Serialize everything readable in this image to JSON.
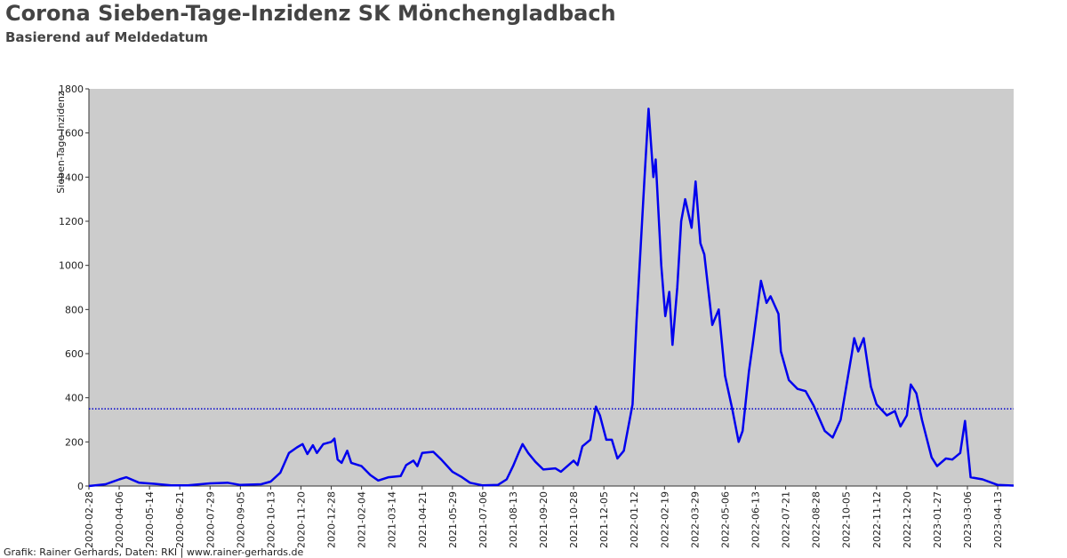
{
  "chart_data": {
    "type": "line",
    "title": "Corona Sieben-Tage-Inzidenz SK Mönchengladbach",
    "subtitle": "Basierend auf Meldedatum",
    "y_label": "Sieben-Tage-Inzidenz",
    "footer": "Grafik: Rainer Gerhards, Daten: RKI | www.rainer-gerhards.de",
    "color": "#0000ee",
    "reference_line": 350,
    "reference_color": "#0000cc",
    "ylim": [
      0,
      1800
    ],
    "yticks": [
      0,
      200,
      400,
      600,
      800,
      1000,
      1200,
      1400,
      1600,
      1800
    ],
    "xlim": [
      "2020-02-28",
      "2023-05-03"
    ],
    "xticks": [
      "2020-02-28",
      "2020-04-06",
      "2020-05-14",
      "2020-06-21",
      "2020-07-29",
      "2020-09-05",
      "2020-10-13",
      "2020-11-20",
      "2020-12-28",
      "2021-02-04",
      "2021-03-14",
      "2021-04-21",
      "2021-05-29",
      "2021-07-06",
      "2021-08-13",
      "2021-09-20",
      "2021-10-28",
      "2021-12-05",
      "2022-01-12",
      "2022-02-19",
      "2022-03-29",
      "2022-05-06",
      "2022-06-13",
      "2022-07-21",
      "2022-08-28",
      "2022-10-05",
      "2022-11-12",
      "2022-12-20",
      "2023-01-27",
      "2023-03-06",
      "2023-04-13"
    ],
    "x": [
      "2020-02-28",
      "2020-03-20",
      "2020-04-06",
      "2020-04-15",
      "2020-05-01",
      "2020-05-20",
      "2020-06-10",
      "2020-07-01",
      "2020-07-29",
      "2020-08-20",
      "2020-09-05",
      "2020-10-01",
      "2020-10-13",
      "2020-10-25",
      "2020-11-05",
      "2020-11-15",
      "2020-11-22",
      "2020-11-28",
      "2020-12-05",
      "2020-12-10",
      "2020-12-18",
      "2020-12-28",
      "2021-01-01",
      "2021-01-05",
      "2021-01-10",
      "2021-01-17",
      "2021-01-22",
      "2021-02-04",
      "2021-02-15",
      "2021-02-25",
      "2021-03-10",
      "2021-03-25",
      "2021-04-01",
      "2021-04-10",
      "2021-04-15",
      "2021-04-21",
      "2021-05-05",
      "2021-05-15",
      "2021-05-29",
      "2021-06-10",
      "2021-06-20",
      "2021-07-06",
      "2021-07-25",
      "2021-08-05",
      "2021-08-13",
      "2021-08-20",
      "2021-08-25",
      "2021-09-01",
      "2021-09-10",
      "2021-09-20",
      "2021-10-05",
      "2021-10-12",
      "2021-10-28",
      "2021-11-02",
      "2021-11-08",
      "2021-11-18",
      "2021-11-25",
      "2021-11-30",
      "2021-12-08",
      "2021-12-15",
      "2021-12-22",
      "2021-12-30",
      "2022-01-10",
      "2022-01-15",
      "2022-01-25",
      "2022-01-30",
      "2022-02-05",
      "2022-02-08",
      "2022-02-15",
      "2022-02-20",
      "2022-02-25",
      "2022-03-01",
      "2022-03-07",
      "2022-03-12",
      "2022-03-17",
      "2022-03-25",
      "2022-03-30",
      "2022-04-05",
      "2022-04-10",
      "2022-04-20",
      "2022-04-28",
      "2022-05-06",
      "2022-05-15",
      "2022-05-23",
      "2022-05-28",
      "2022-06-05",
      "2022-06-10",
      "2022-06-20",
      "2022-06-27",
      "2022-07-02",
      "2022-07-12",
      "2022-07-15",
      "2022-07-25",
      "2022-08-05",
      "2022-08-15",
      "2022-08-25",
      "2022-09-08",
      "2022-09-18",
      "2022-09-28",
      "2022-10-05",
      "2022-10-12",
      "2022-10-15",
      "2022-10-20",
      "2022-10-27",
      "2022-11-05",
      "2022-11-12",
      "2022-11-25",
      "2022-12-05",
      "2022-12-12",
      "2022-12-20",
      "2022-12-25",
      "2023-01-01",
      "2023-01-08",
      "2023-01-20",
      "2023-01-27",
      "2023-02-07",
      "2023-02-15",
      "2023-02-25",
      "2023-03-03",
      "2023-03-10",
      "2023-03-25",
      "2023-04-13",
      "2023-05-03"
    ],
    "values": [
      0,
      8,
      30,
      40,
      15,
      10,
      3,
      3,
      12,
      15,
      5,
      8,
      20,
      60,
      150,
      175,
      190,
      145,
      185,
      150,
      190,
      200,
      215,
      120,
      105,
      160,
      105,
      90,
      50,
      25,
      40,
      45,
      95,
      115,
      90,
      150,
      155,
      120,
      65,
      40,
      15,
      3,
      5,
      30,
      90,
      150,
      190,
      150,
      110,
      75,
      80,
      65,
      115,
      95,
      180,
      210,
      360,
      320,
      210,
      210,
      125,
      160,
      370,
      750,
      1400,
      1710,
      1400,
      1480,
      1000,
      770,
      880,
      640,
      900,
      1200,
      1300,
      1170,
      1380,
      1100,
      1050,
      730,
      800,
      500,
      350,
      200,
      250,
      520,
      650,
      930,
      830,
      860,
      780,
      610,
      480,
      440,
      430,
      365,
      250,
      220,
      300,
      450,
      600,
      670,
      610,
      670,
      450,
      370,
      320,
      340,
      270,
      320,
      460,
      420,
      300,
      130,
      90,
      125,
      120,
      150,
      295,
      40,
      30,
      5,
      2
    ]
  }
}
